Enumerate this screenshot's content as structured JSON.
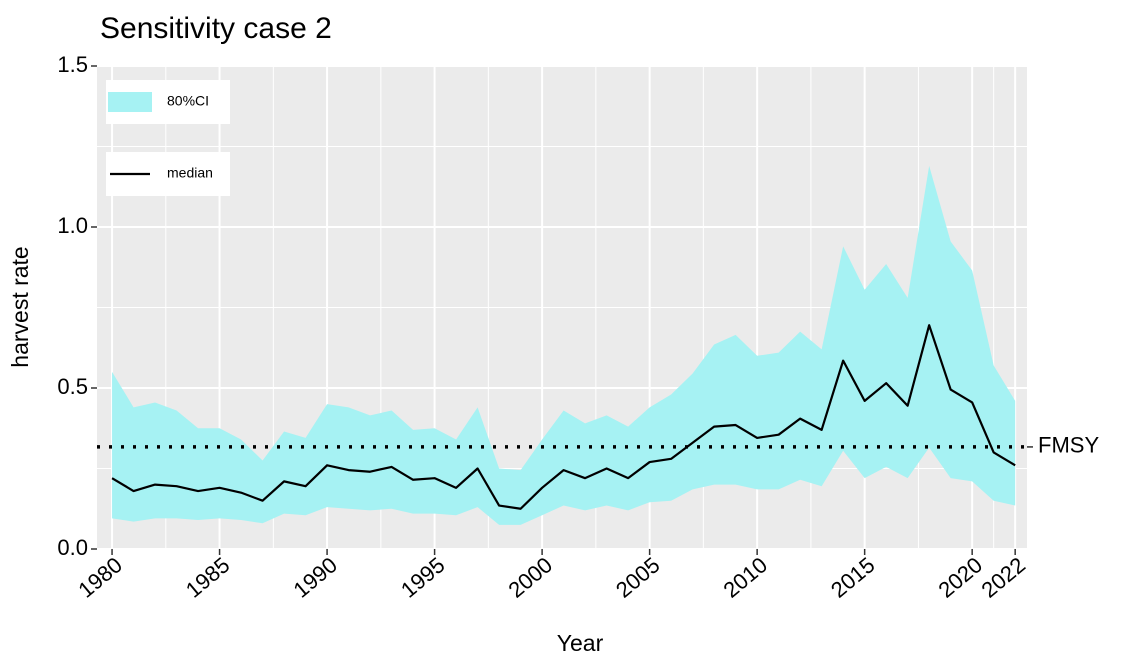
{
  "chart_data": {
    "type": "line",
    "title": "Sensitivity case 2",
    "x_label": "Year",
    "y_label": "harvest rate",
    "x": [
      1980,
      1981,
      1982,
      1983,
      1984,
      1985,
      1986,
      1987,
      1988,
      1989,
      1990,
      1991,
      1992,
      1993,
      1994,
      1995,
      1996,
      1997,
      1998,
      1999,
      2000,
      2001,
      2002,
      2003,
      2004,
      2005,
      2006,
      2007,
      2008,
      2009,
      2010,
      2011,
      2012,
      2013,
      2014,
      2015,
      2016,
      2017,
      2018,
      2019,
      2020,
      2021,
      2022
    ],
    "series": [
      {
        "name": "80%CI",
        "color": "#a6f2f3",
        "type": "area",
        "upper": [
          0.55,
          0.44,
          0.455,
          0.43,
          0.375,
          0.375,
          0.34,
          0.275,
          0.365,
          0.345,
          0.45,
          0.44,
          0.415,
          0.43,
          0.37,
          0.375,
          0.34,
          0.44,
          0.25,
          0.245,
          0.34,
          0.43,
          0.39,
          0.415,
          0.38,
          0.44,
          0.48,
          0.545,
          0.635,
          0.665,
          0.6,
          0.61,
          0.675,
          0.62,
          0.94,
          0.805,
          0.885,
          0.78,
          1.19,
          0.955,
          0.865,
          0.57,
          0.46
        ],
        "lower": [
          0.095,
          0.085,
          0.095,
          0.095,
          0.09,
          0.095,
          0.09,
          0.08,
          0.11,
          0.105,
          0.13,
          0.125,
          0.12,
          0.125,
          0.11,
          0.11,
          0.105,
          0.13,
          0.075,
          0.075,
          0.105,
          0.135,
          0.12,
          0.135,
          0.12,
          0.145,
          0.15,
          0.185,
          0.2,
          0.2,
          0.185,
          0.185,
          0.215,
          0.195,
          0.305,
          0.22,
          0.255,
          0.22,
          0.315,
          0.22,
          0.21,
          0.15,
          0.135
        ]
      },
      {
        "name": "median",
        "color": "#000000",
        "type": "line",
        "values": [
          0.22,
          0.18,
          0.2,
          0.195,
          0.18,
          0.19,
          0.175,
          0.15,
          0.21,
          0.195,
          0.26,
          0.245,
          0.24,
          0.255,
          0.215,
          0.22,
          0.19,
          0.25,
          0.135,
          0.125,
          0.19,
          0.245,
          0.22,
          0.25,
          0.22,
          0.27,
          0.28,
          0.33,
          0.38,
          0.385,
          0.345,
          0.355,
          0.405,
          0.37,
          0.585,
          0.46,
          0.515,
          0.445,
          0.695,
          0.495,
          0.455,
          0.3,
          0.26
        ]
      }
    ],
    "reference_line": {
      "value": 0.317,
      "label": "FMSY"
    },
    "xlim": [
      1979.3,
      2022.55
    ],
    "xticks": [
      1980,
      1985,
      1990,
      1995,
      2000,
      2005,
      2010,
      2015,
      2020,
      2022
    ],
    "ylim": [
      0,
      1.5
    ],
    "yticks": [
      {
        "value": 0,
        "label": "0.0"
      },
      0.5,
      {
        "value": 1,
        "label": "1.0"
      },
      1.5
    ],
    "grid": true,
    "legend": "top-left"
  }
}
